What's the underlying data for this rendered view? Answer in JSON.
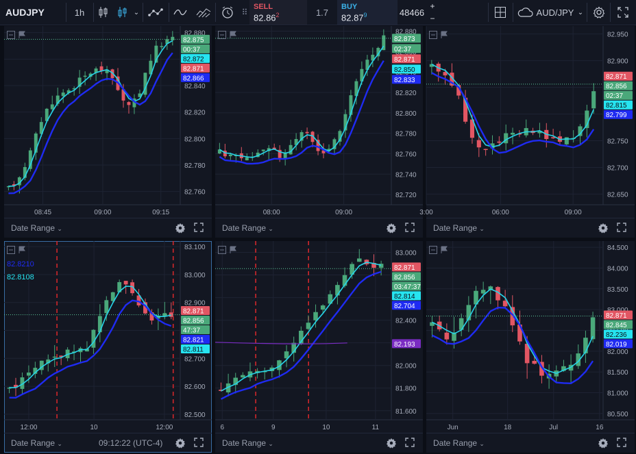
{
  "toolbar": {
    "symbol": "AUDJPY",
    "interval": "1h",
    "sell_label": "SELL",
    "sell_price_main": "82.86",
    "sell_price_sup": "2",
    "spread": "1.7",
    "buy_label": "BUY",
    "buy_price_main": "82.87",
    "buy_price_sup": "9",
    "quantity": "48466",
    "qty_plus": "+",
    "qty_minus": "−",
    "layout_symbol": "AUD/JPY",
    "icons": [
      "candles-icon",
      "candles-outline-icon",
      "indicators-icon",
      "line-chart-icon",
      "area-chart-icon",
      "alarm-icon",
      "grid-layout-icon",
      "cloud-icon",
      "gear-icon",
      "fullscreen-icon"
    ]
  },
  "colors": {
    "up": "#4aa87a",
    "down": "#e25663",
    "ma_fast": "#26d4e8",
    "ma_slow": "#1f2bf2",
    "purple_line": "#7a2cc2",
    "last_price_line": "#5cc79a",
    "session_line": "#d1272b"
  },
  "panes": [
    {
      "id": "pane-1",
      "footer": {
        "date_range": "Date Range"
      },
      "x_ticks": [
        {
          "label": "08:45",
          "t": 0.22
        },
        {
          "label": "09:00",
          "t": 0.56
        },
        {
          "label": "09:15",
          "t": 0.89
        }
      ],
      "y_ticks": [
        "82.880",
        "82.860",
        "82.840",
        "82.820",
        "82.800",
        "82.780",
        "82.760"
      ],
      "y_range": [
        82.75,
        82.885
      ],
      "price_labels": [
        {
          "text": "82.875",
          "bg": "#4aa87a",
          "fg": "#ffffff",
          "value": 82.875
        },
        {
          "text": "00:37",
          "bg": "#4aa87a",
          "fg": "#ffffff",
          "value": 82.8735,
          "offset": 14
        },
        {
          "text": "82.872",
          "bg": "#26e4f0",
          "fg": "#0b0e16",
          "value": 82.872,
          "offset": 28
        },
        {
          "text": "82.871",
          "bg": "#e25663",
          "fg": "#ffffff",
          "value": 82.871,
          "offset": 42
        },
        {
          "text": "82.866",
          "bg": "#1f2bf2",
          "fg": "#ffffff",
          "value": 82.866,
          "offset": 56
        }
      ],
      "last_price": 82.875,
      "series": {
        "start": 82.762,
        "path": [
          0.0,
          0.004,
          0.01,
          0.018,
          0.028,
          0.04,
          0.052,
          0.06,
          0.066,
          0.07,
          0.073,
          0.075,
          0.078,
          0.082,
          0.085,
          0.088,
          0.09,
          0.09,
          0.088,
          0.084,
          0.076,
          0.066,
          0.062,
          0.066,
          0.074,
          0.088,
          0.098,
          0.106,
          0.11,
          0.112,
          0.113
        ],
        "n": 31,
        "vol": 0.006
      }
    },
    {
      "id": "pane-2",
      "footer": {
        "date_range": "Date Range"
      },
      "x_ticks": [
        {
          "label": "08:00",
          "t": 0.32
        },
        {
          "label": "09:00",
          "t": 0.73
        }
      ],
      "y_ticks": [
        "82.880",
        "82.860",
        "82.840",
        "82.820",
        "82.800",
        "82.780",
        "82.760",
        "82.740",
        "82.720"
      ],
      "y_range": [
        82.71,
        82.885
      ],
      "price_labels": [
        {
          "text": "82.873",
          "bg": "#4aa87a",
          "fg": "#ffffff",
          "value": 82.873
        },
        {
          "text": "02:37",
          "bg": "#4aa87a",
          "fg": "#ffffff",
          "value": 82.8716,
          "offset": 15
        },
        {
          "text": "82.871",
          "bg": "#e25663",
          "fg": "#ffffff",
          "value": 82.871,
          "offset": 30
        },
        {
          "text": "82.850",
          "bg": "#26e4f0",
          "fg": "#0b0e16",
          "value": 82.85,
          "offset": 45
        },
        {
          "text": "82.833",
          "bg": "#1f2bf2",
          "fg": "#ffffff",
          "value": 82.833,
          "offset": 60
        }
      ],
      "last_price": 82.873,
      "series": {
        "start": 82.762,
        "path": [
          0.0,
          -0.002,
          -0.004,
          -0.004,
          -0.005,
          -0.006,
          -0.006,
          -0.004,
          0.0,
          0.002,
          0.0,
          -0.004,
          0.0,
          0.006,
          0.014,
          0.02,
          0.016,
          0.008,
          0.002,
          0.0,
          0.004,
          0.01,
          0.02,
          0.036,
          0.054,
          0.07,
          0.082,
          0.09,
          0.096,
          0.104,
          0.111
        ],
        "n": 31,
        "vol": 0.008
      }
    },
    {
      "id": "pane-3",
      "footer": {
        "date_range": "Date Range"
      },
      "x_ticks": [
        {
          "label": "3:00",
          "t": 0.0
        },
        {
          "label": "06:00",
          "t": 0.42
        },
        {
          "label": "09:00",
          "t": 0.83
        }
      ],
      "y_ticks": [
        "82.950",
        "82.900",
        "82.850",
        "82.800",
        "82.750",
        "82.700",
        "82.650"
      ],
      "y_range": [
        82.63,
        82.965
      ],
      "price_labels": [
        {
          "text": "82.871",
          "bg": "#e25663",
          "fg": "#ffffff",
          "value": 82.871
        },
        {
          "text": "82.856",
          "bg": "#4aa87a",
          "fg": "#ffffff",
          "value": 82.856,
          "offset": 14
        },
        {
          "text": "02:37",
          "bg": "#4aa87a",
          "fg": "#ffffff",
          "value": 82.84,
          "offset": 28
        },
        {
          "text": "82.815",
          "bg": "#26e4f0",
          "fg": "#0b0e16",
          "value": 82.815,
          "offset": 42
        },
        {
          "text": "82.799",
          "bg": "#1f2bf2",
          "fg": "#ffffff",
          "value": 82.799,
          "offset": 56
        }
      ],
      "last_price": 82.856,
      "series": {
        "start": 82.89,
        "path": [
          0.0,
          -0.004,
          -0.012,
          -0.03,
          -0.06,
          -0.1,
          -0.13,
          -0.15,
          -0.158,
          -0.15,
          -0.14,
          -0.132,
          -0.128,
          -0.124,
          -0.122,
          -0.124,
          -0.128,
          -0.132,
          -0.136,
          -0.136,
          -0.132,
          -0.128,
          -0.11,
          -0.08,
          -0.044
        ],
        "n": 25,
        "vol": 0.018
      }
    },
    {
      "id": "pane-4",
      "active": true,
      "legend": [
        {
          "text": "82.8210",
          "color": "#1f2bf2"
        },
        {
          "text": "82.8108",
          "color": "#26e4f0"
        }
      ],
      "footer": {
        "date_range": "Date Range",
        "time": "09:12:22 (UTC-4)"
      },
      "x_ticks": [
        {
          "label": "12:00",
          "t": 0.14
        },
        {
          "label": "10",
          "t": 0.51
        },
        {
          "label": "12:00",
          "t": 0.91
        }
      ],
      "session_lines": [
        0.3,
        0.96
      ],
      "y_ticks": [
        "83.100",
        "83.000",
        "82.900",
        "82.800",
        "82.700",
        "82.600",
        "82.500"
      ],
      "y_range": [
        82.48,
        83.12
      ],
      "price_labels": [
        {
          "text": "82.871",
          "bg": "#e25663",
          "fg": "#ffffff",
          "value": 82.871
        },
        {
          "text": "82.856",
          "bg": "#4aa87a",
          "fg": "#ffffff",
          "value": 82.856,
          "offset": 14
        },
        {
          "text": "47:37",
          "bg": "#4aa87a",
          "fg": "#ffffff",
          "value": 82.84,
          "offset": 28
        },
        {
          "text": "82.821",
          "bg": "#1f2bf2",
          "fg": "#ffffff",
          "value": 82.821,
          "offset": 42
        },
        {
          "text": "82.811",
          "bg": "#26e4f0",
          "fg": "#0b0e16",
          "value": 82.811,
          "offset": 56
        }
      ],
      "last_price": 82.856,
      "series": {
        "start": 82.59,
        "path": [
          0.0,
          0.02,
          0.04,
          0.06,
          0.08,
          0.09,
          0.1,
          0.11,
          0.12,
          0.126,
          0.13,
          0.14,
          0.16,
          0.2,
          0.26,
          0.32,
          0.36,
          0.38,
          0.36,
          0.33,
          0.3,
          0.28,
          0.26,
          0.25,
          0.26,
          0.27
        ],
        "n": 26,
        "vol": 0.04
      }
    },
    {
      "id": "pane-5",
      "footer": {
        "date_range": "Date Range"
      },
      "x_ticks": [
        {
          "label": "6",
          "t": 0.04
        },
        {
          "label": "9",
          "t": 0.33
        },
        {
          "label": "10",
          "t": 0.63
        },
        {
          "label": "11",
          "t": 0.91
        }
      ],
      "session_lines": [
        0.23,
        0.53
      ],
      "y_ticks": [
        "83.000",
        "82.800",
        "82.600",
        "82.400",
        "82.200",
        "82.000",
        "81.800",
        "81.600"
      ],
      "y_range": [
        81.52,
        83.1
      ],
      "price_labels": [
        {
          "text": "82.871",
          "bg": "#e25663",
          "fg": "#ffffff",
          "value": 82.871
        },
        {
          "text": "82.856",
          "bg": "#4aa87a",
          "fg": "#ffffff",
          "value": 82.856,
          "offset": 14
        },
        {
          "text": "03:47:37",
          "bg": "#4aa87a",
          "fg": "#ffffff",
          "value": 82.84,
          "offset": 28
        },
        {
          "text": "82.814",
          "bg": "#26e4f0",
          "fg": "#0b0e16",
          "value": 82.814,
          "offset": 42
        },
        {
          "text": "82.704",
          "bg": "#1f2bf2",
          "fg": "#ffffff",
          "value": 82.704,
          "offset": 56
        },
        {
          "text": "82.193",
          "bg": "#7a2cc2",
          "fg": "#ffffff",
          "value": 82.193
        }
      ],
      "last_price": 82.856,
      "series": {
        "start": 81.77,
        "path": [
          0.0,
          0.04,
          0.09,
          0.12,
          0.15,
          0.18,
          0.2,
          0.24,
          0.3,
          0.38,
          0.46,
          0.54,
          0.62,
          0.7,
          0.78,
          0.86,
          0.96,
          1.06,
          1.14,
          1.16,
          1.12,
          1.1,
          1.11
        ],
        "n": 23,
        "vol": 0.08
      }
    },
    {
      "id": "pane-6",
      "footer": {
        "date_range": "Date Range"
      },
      "x_ticks": [
        {
          "label": "Jun",
          "t": 0.15
        },
        {
          "label": "18",
          "t": 0.46
        },
        {
          "label": "Jul",
          "t": 0.72
        },
        {
          "label": "16",
          "t": 0.98
        }
      ],
      "y_ticks": [
        "84.500",
        "84.000",
        "83.500",
        "83.000",
        "82.500",
        "82.000",
        "81.500",
        "81.000",
        "80.500"
      ],
      "y_range": [
        80.35,
        84.65
      ],
      "price_labels": [
        {
          "text": "82.871",
          "bg": "#e25663",
          "fg": "#ffffff",
          "value": 82.871
        },
        {
          "text": "82.845",
          "bg": "#4aa87a",
          "fg": "#ffffff",
          "value": 82.845,
          "offset": 14
        },
        {
          "text": "82.236",
          "bg": "#26e4f0",
          "fg": "#0b0e16",
          "value": 82.236,
          "offset": 28
        },
        {
          "text": "82.019",
          "bg": "#1f2bf2",
          "fg": "#ffffff",
          "value": 82.019,
          "offset": 42
        }
      ],
      "last_price": 82.845,
      "series": {
        "start": 82.7,
        "path": [
          0.0,
          -0.3,
          -0.4,
          -0.2,
          0.1,
          0.5,
          0.7,
          0.8,
          0.75,
          0.6,
          0.4,
          0.0,
          -0.5,
          -0.9,
          -1.1,
          -1.3,
          -1.2,
          -1.15,
          -1.1,
          -1.05,
          -0.8,
          -0.4,
          0.1
        ],
        "n": 23,
        "vol": 0.35
      }
    }
  ]
}
